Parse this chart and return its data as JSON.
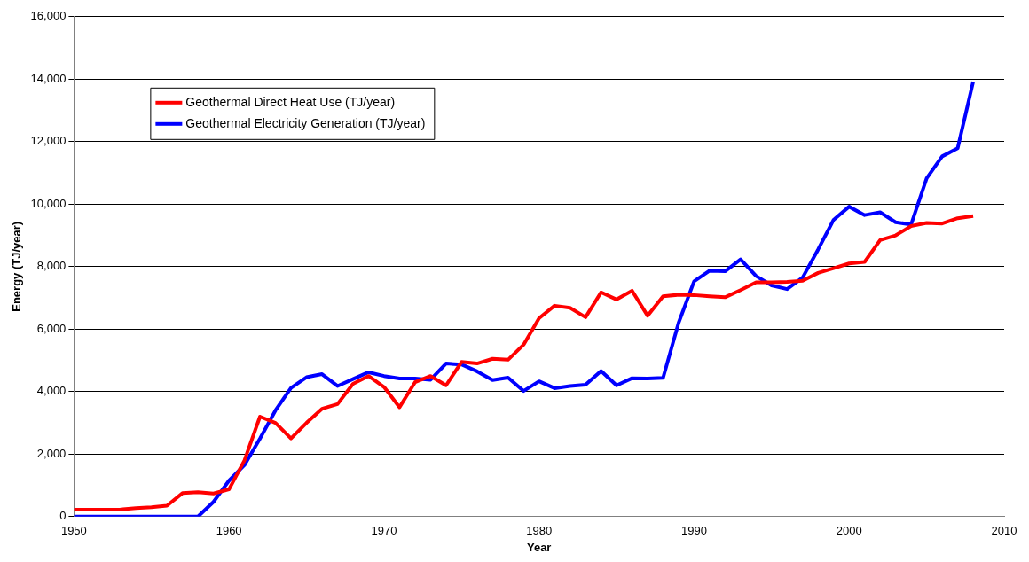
{
  "chart_data": {
    "type": "line",
    "xlabel": "Year",
    "ylabel": "Energy (TJ/year)",
    "x": [
      1950,
      1951,
      1952,
      1953,
      1954,
      1955,
      1956,
      1957,
      1958,
      1959,
      1960,
      1961,
      1962,
      1963,
      1964,
      1965,
      1966,
      1967,
      1968,
      1969,
      1970,
      1971,
      1972,
      1973,
      1974,
      1975,
      1976,
      1977,
      1978,
      1979,
      1980,
      1981,
      1982,
      1983,
      1984,
      1985,
      1986,
      1987,
      1988,
      1989,
      1990,
      1991,
      1992,
      1993,
      1994,
      1995,
      1996,
      1997,
      1998,
      1999,
      2000,
      2001,
      2002,
      2003,
      2004,
      2005,
      2006,
      2007,
      2008
    ],
    "series": [
      {
        "name": "Geothermal Direct Heat Use (TJ/year)",
        "color": "#ff0000",
        "values": [
          220,
          220,
          220,
          230,
          270,
          300,
          350,
          750,
          780,
          740,
          870,
          1800,
          3200,
          3000,
          2500,
          3000,
          3450,
          3600,
          4250,
          4500,
          4150,
          3500,
          4300,
          4500,
          4200,
          4950,
          4900,
          5050,
          5020,
          5500,
          6350,
          6750,
          6680,
          6380,
          7180,
          6950,
          7230,
          6430,
          7050,
          7100,
          7090,
          7050,
          7020,
          7250,
          7500,
          7500,
          7510,
          7550,
          7800,
          7950,
          8100,
          8150,
          8850,
          9000,
          9300,
          9400,
          9380,
          9550,
          9620
        ]
      },
      {
        "name": "Geothermal Electricity Generation (TJ/year)",
        "color": "#0000ff",
        "values": [
          0,
          0,
          0,
          0,
          0,
          0,
          0,
          0,
          0,
          470,
          1150,
          1650,
          2500,
          3400,
          4120,
          4460,
          4560,
          4180,
          4400,
          4620,
          4500,
          4420,
          4420,
          4380,
          4900,
          4870,
          4650,
          4370,
          4450,
          4020,
          4330,
          4110,
          4180,
          4220,
          4660,
          4200,
          4430,
          4420,
          4440,
          6200,
          7530,
          7870,
          7850,
          8230,
          7700,
          7400,
          7280,
          7650,
          8550,
          9500,
          9920,
          9650,
          9740,
          9420,
          9350,
          10830,
          11530,
          11790,
          13920
        ]
      }
    ],
    "xlim": [
      1950,
      2010
    ],
    "xticks": [
      1950,
      1960,
      1970,
      1980,
      1990,
      2000,
      2010
    ],
    "ylim": [
      0,
      16000
    ],
    "yticks": [
      {
        "value": 0,
        "label": "0"
      },
      {
        "value": 2000,
        "label": "2,000"
      },
      {
        "value": 4000,
        "label": "4,000"
      },
      {
        "value": 6000,
        "label": "6,000"
      },
      {
        "value": 8000,
        "label": "8,000"
      },
      {
        "value": 10000,
        "label": "10,000"
      },
      {
        "value": 12000,
        "label": "12,000"
      },
      {
        "value": 14000,
        "label": "14,000"
      },
      {
        "value": 16000,
        "label": "16,000"
      }
    ],
    "grid": "y",
    "legend": "top left",
    "marker": "none",
    "line_style": "solid"
  }
}
